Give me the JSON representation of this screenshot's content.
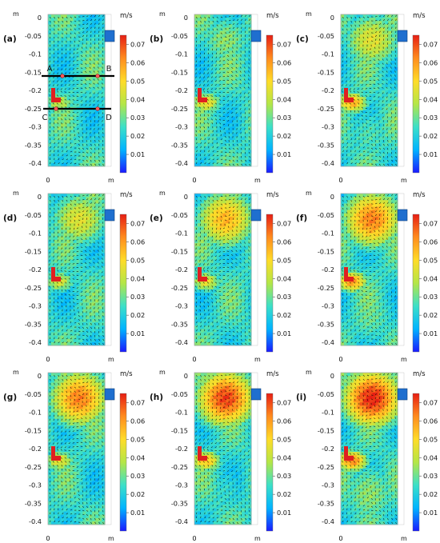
{
  "figure": {
    "unit": "m/s",
    "axis_unit": "m",
    "y_ticks": [
      "0",
      "-0.05",
      "-0.1",
      "-0.15",
      "-0.2",
      "-0.25",
      "-0.3",
      "-0.35",
      "-0.4"
    ],
    "x_tick": "0",
    "colorbar_ticks": [
      "0.07",
      "0.06",
      "0.05",
      "0.04",
      "0.03",
      "0.02",
      "0.01"
    ],
    "colorbar_range": [
      0,
      0.075
    ],
    "colormap": [
      "#1a1aff",
      "#00b4ff",
      "#3ce0c8",
      "#b4e646",
      "#ffdc28",
      "#ff8c1e",
      "#e61e14"
    ],
    "inlet_color": "#1f6fcf",
    "outlet_color": "#e02020",
    "line_labels_a": [
      "A",
      "B",
      "C",
      "D"
    ],
    "panels": [
      {
        "label": "(a)",
        "upper_vortex": 0.3,
        "lower_vortex": 0.1
      },
      {
        "label": "(b)",
        "upper_vortex": 0.45,
        "lower_vortex": 0.25
      },
      {
        "label": "(c)",
        "upper_vortex": 0.6,
        "lower_vortex": 0.4
      },
      {
        "label": "(d)",
        "upper_vortex": 0.6,
        "lower_vortex": 0.15
      },
      {
        "label": "(e)",
        "upper_vortex": 0.75,
        "lower_vortex": 0.2
      },
      {
        "label": "(f)",
        "upper_vortex": 0.85,
        "lower_vortex": 0.45
      },
      {
        "label": "(g)",
        "upper_vortex": 0.85,
        "lower_vortex": 0.2
      },
      {
        "label": "(h)",
        "upper_vortex": 0.95,
        "lower_vortex": 0.35
      },
      {
        "label": "(i)",
        "upper_vortex": 1.0,
        "lower_vortex": 0.5
      }
    ]
  }
}
